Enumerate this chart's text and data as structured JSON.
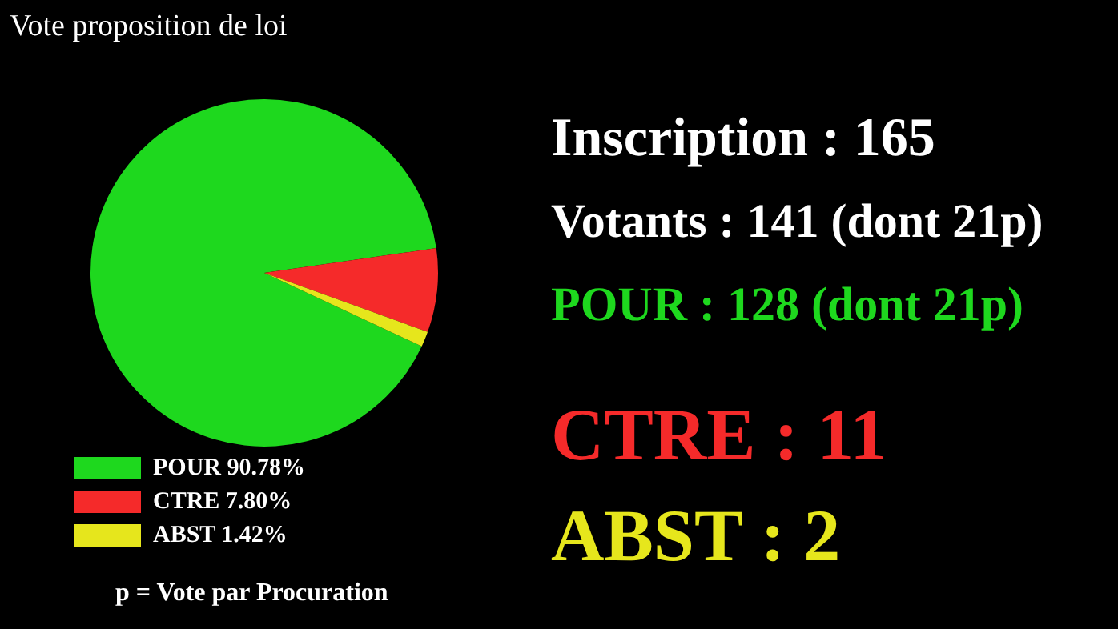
{
  "chart_data": {
    "type": "pie",
    "title": "Vote proposition de loi",
    "categories": [
      "POUR 90.78%",
      "CTRE 7.80%",
      "ABST 1.42%"
    ],
    "values": [
      90.78,
      7.8,
      1.42
    ],
    "colors": [
      "#1ed81e",
      "#f52a2a",
      "#e6e61c"
    ],
    "legend": "bottom left",
    "annotations": [
      "Inscription : 165",
      "Votants : 141 (dont 21p)",
      "POUR : 128 (dont 21p)",
      "CTRE : 11",
      "ABST : 2",
      "p = Vote par Procuration"
    ]
  }
}
